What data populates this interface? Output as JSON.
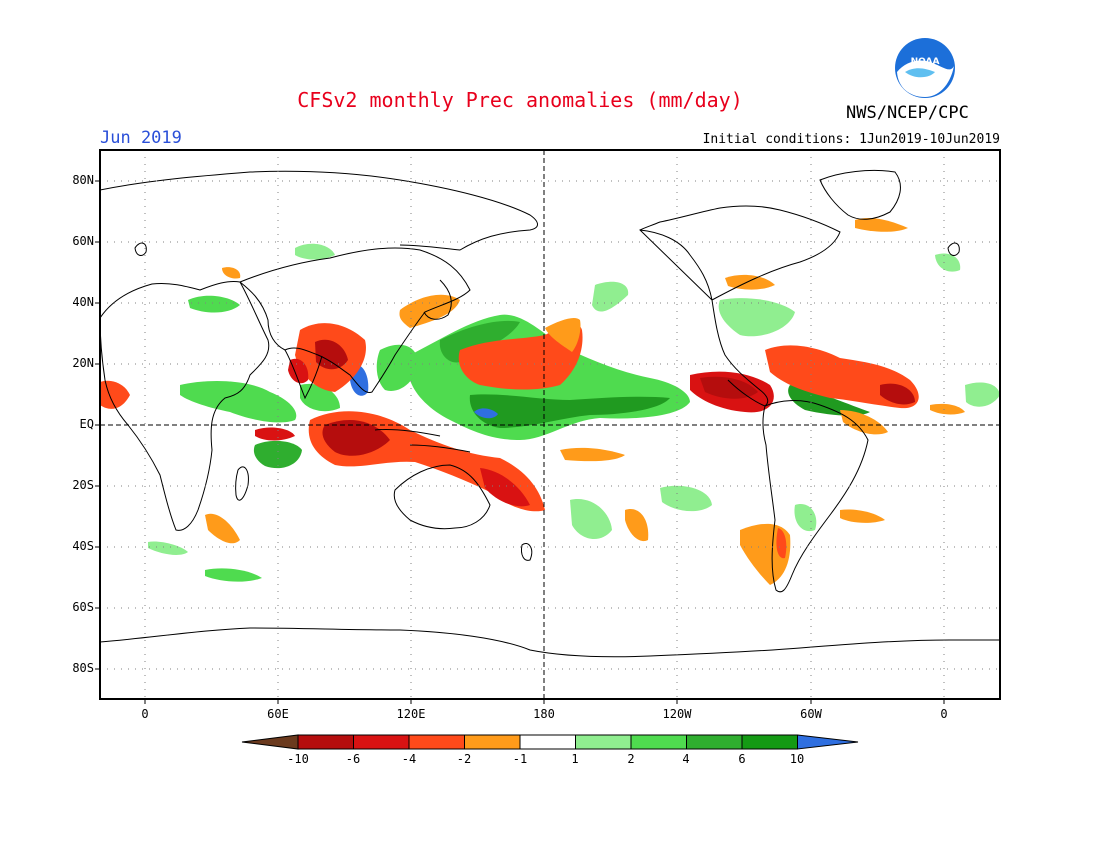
{
  "header": {
    "title": "CFSv2 monthly Prec anomalies (mm/day)",
    "month": "Jun 2019",
    "initial_conditions": "Initial conditions: 1Jun2019-10Jun2019",
    "agency": "NWS/NCEP/CPC",
    "logo_text": "NOAA"
  },
  "map": {
    "lat_labels": [
      "80N",
      "60N",
      "40N",
      "20N",
      "EQ",
      "20S",
      "40S",
      "60S",
      "80S"
    ],
    "lon_labels": [
      "0",
      "60E",
      "120E",
      "180",
      "120W",
      "60W",
      "0"
    ],
    "lat_range": [
      -90,
      90
    ],
    "lon_range": [
      -20,
      380
    ],
    "gridlines": "dotted"
  },
  "colorbar": {
    "labels": [
      "-10",
      "-6",
      "-4",
      "-2",
      "-1",
      "1",
      "2",
      "4",
      "6",
      "10"
    ],
    "colors": [
      "#6b3a1e",
      "#b50d0d",
      "#d91212",
      "#ff4a1a",
      "#ff9b1a",
      "#ffffff",
      "#90ee90",
      "#4fdb4f",
      "#2fae2f",
      "#149a14",
      "#2f6fe0"
    ]
  },
  "colors": {
    "title": "#e8001c",
    "month": "#2a4fd8",
    "strong_dry": "#c60f0f",
    "moderate_dry": "#ff4a1a",
    "weak_dry": "#ff9b1a",
    "weak_wet": "#90ee90",
    "moderate_wet": "#4fdb4f",
    "strong_wet": "#209a20",
    "extreme_wet": "#2f6fe0"
  }
}
